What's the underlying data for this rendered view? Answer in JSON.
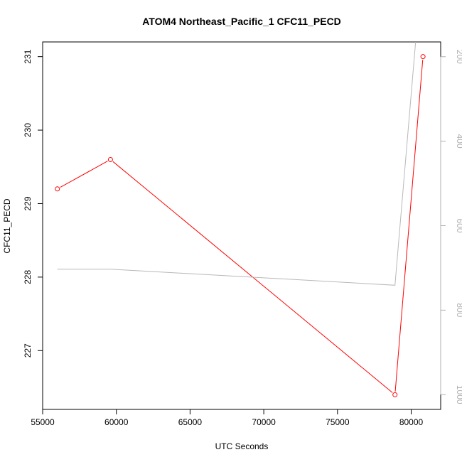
{
  "chart_data": {
    "type": "line",
    "title": "ATOM4 Northeast_Pacific_1 CFC11_PECD",
    "xlabel": "UTC Seconds",
    "ylabel": "CFC11_PECD",
    "xlim": [
      55000,
      82000
    ],
    "ylim": [
      226.2,
      231.2
    ],
    "y2lim": [
      165,
      1035
    ],
    "x_ticks": [
      "55000",
      "60000",
      "65000",
      "70000",
      "75000",
      "80000"
    ],
    "y_ticks": [
      "227",
      "228",
      "229",
      "230",
      "231"
    ],
    "y2_ticks": [
      "200",
      "400",
      "600",
      "800",
      "1000"
    ],
    "colors": {
      "primary": "#ff0000",
      "secondary": "#b8b8b8"
    },
    "series": [
      {
        "axis": "left",
        "color": "#ff0000",
        "marker": "open-circle",
        "x": [
          56000,
          59600,
          78900,
          80800
        ],
        "y": [
          229.2,
          229.6,
          226.4,
          231.0
        ]
      },
      {
        "axis": "right",
        "color": "#b8b8b8",
        "marker": "none",
        "x": [
          56000,
          59600,
          78900,
          80300
        ],
        "y": [
          703,
          703,
          741,
          165
        ]
      }
    ]
  }
}
